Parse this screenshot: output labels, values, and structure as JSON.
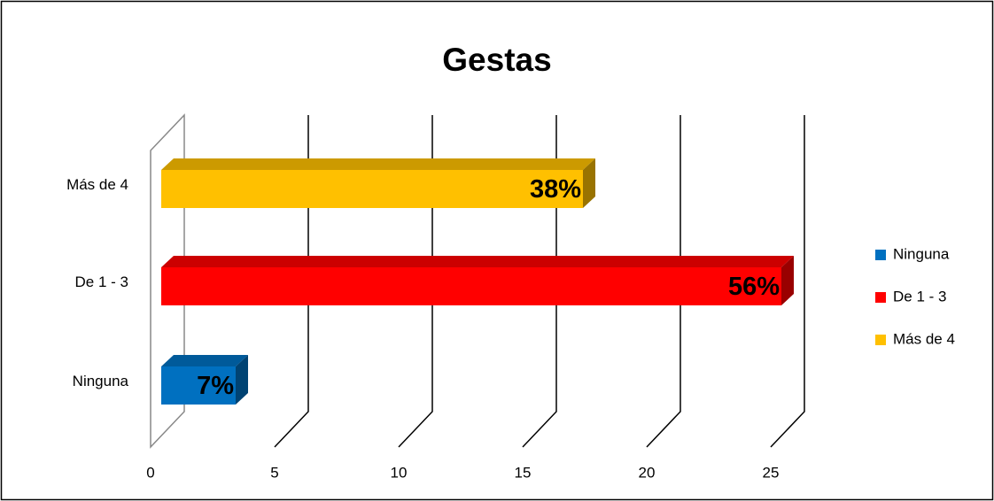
{
  "chart_data": {
    "type": "bar",
    "orientation": "horizontal",
    "title": "Gestas",
    "categories": [
      "Ninguna",
      "De 1 - 3",
      "Más de 4"
    ],
    "values": [
      3,
      25,
      17
    ],
    "value_labels": [
      "7%",
      "56%",
      "38%"
    ],
    "colors": [
      "#0070c0",
      "#ff0000",
      "#ffc000"
    ],
    "xlim": [
      0,
      25
    ],
    "xticks": [
      0,
      5,
      10,
      15,
      20,
      25
    ],
    "grid": true,
    "legend": "right"
  }
}
